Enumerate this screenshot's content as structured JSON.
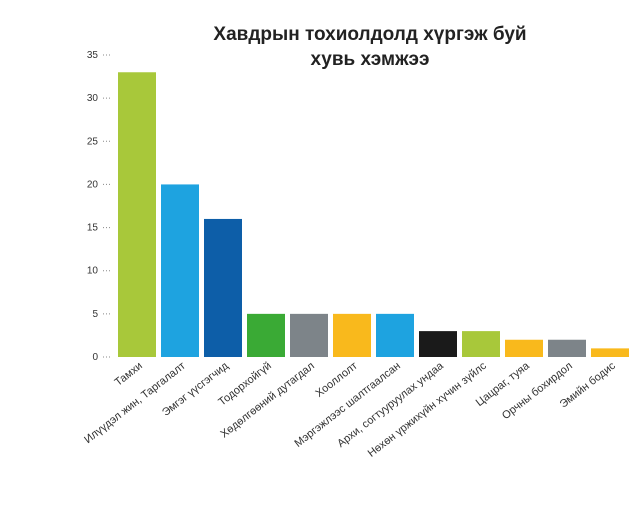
{
  "chart_data": {
    "type": "bar",
    "title": "Хавдрын тохиолдолд хүргэж буй хувь хэмжээ",
    "categories": [
      "Тамхи",
      "Илүүдэл жин, Таргалалт",
      "Эмгэг үүсгэгчид",
      "Тодорхойгүй",
      "Хөдөлгөөний дутагдал",
      "Хооллолт",
      "Мэргэжлээс шалтгаалсан",
      "Архи, согтууруулах ундаа",
      "Нөхөн үржихүйн хүчин зүйлс",
      "Цацраг, туяа",
      "Орчны бохирдол",
      "Эмийн бодис"
    ],
    "values": [
      33,
      20,
      16,
      5,
      5,
      5,
      5,
      3,
      3,
      2,
      2,
      1
    ],
    "colors": [
      "#a8c83a",
      "#1ea3e0",
      "#0d5ea8",
      "#3aaa35",
      "#7d8489",
      "#f9b91c",
      "#1ea3e0",
      "#1a1a1a",
      "#a8c83a",
      "#f9b91c",
      "#7d8489",
      "#f9b91c"
    ],
    "ylim": [
      0,
      35
    ],
    "yticks": [
      0,
      5,
      10,
      15,
      20,
      25,
      30,
      35
    ]
  }
}
